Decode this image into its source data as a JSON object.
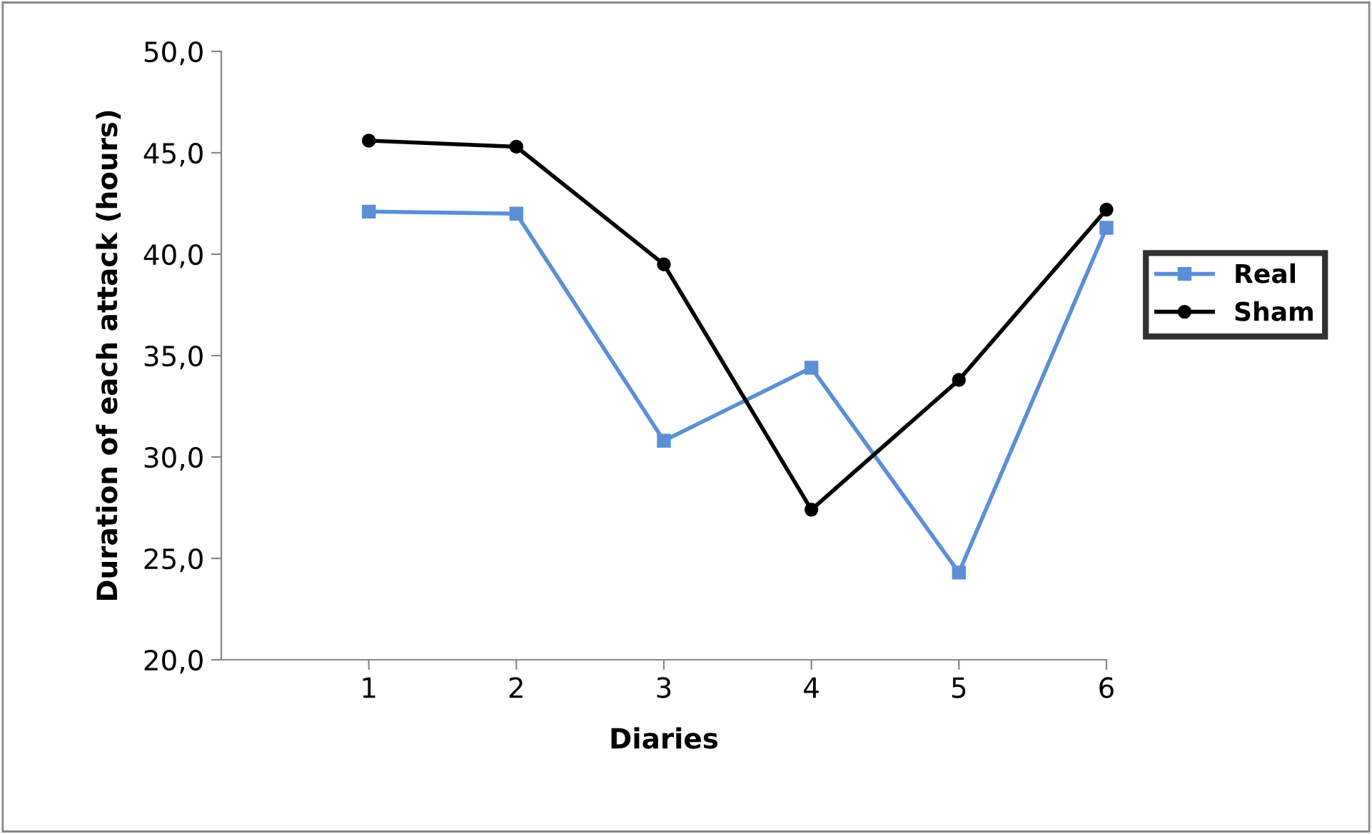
{
  "chart_data": {
    "type": "line",
    "xlabel": "Diaries",
    "ylabel": "Duration of each attack (hours)",
    "x": [
      1,
      2,
      3,
      4,
      5,
      6
    ],
    "xlim": [
      0,
      6
    ],
    "xticks": [
      1,
      2,
      3,
      4,
      5,
      6
    ],
    "ylim": [
      20,
      50
    ],
    "yticks": [
      {
        "value": 20,
        "label": "20,0"
      },
      {
        "value": 25,
        "label": "25,0"
      },
      {
        "value": 30,
        "label": "30,0"
      },
      {
        "value": 35,
        "label": "35,0"
      },
      {
        "value": 40,
        "label": "40,0"
      },
      {
        "value": 45,
        "label": "45,0"
      },
      {
        "value": 50,
        "label": "50,0"
      }
    ],
    "series": [
      {
        "name": "Real",
        "color": "#5b8fd6",
        "marker": "square",
        "values": [
          42.1,
          42.0,
          30.8,
          34.4,
          24.3,
          41.3
        ]
      },
      {
        "name": "Sham",
        "color": "#000000",
        "marker": "circle",
        "values": [
          45.6,
          45.3,
          39.5,
          27.4,
          33.8,
          42.2
        ]
      }
    ],
    "grid": false,
    "legend": "right",
    "line_style": "solid"
  }
}
